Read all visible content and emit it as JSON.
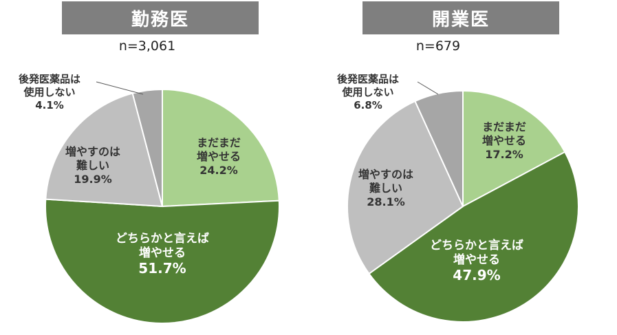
{
  "chart_data": [
    {
      "type": "pie",
      "title": "勤務医",
      "subtitle": "n=3,061",
      "colors": [
        "#a9d18e",
        "#538135",
        "#bfbfbf",
        "#a6a6a6"
      ],
      "slices": [
        {
          "label_lines": [
            "まだまだ",
            "増やせる"
          ],
          "value": 24.2,
          "value_text": "24.2%"
        },
        {
          "label_lines": [
            "どちらかと言えば",
            "増やせる"
          ],
          "value": 51.7,
          "value_text": "51.7%"
        },
        {
          "label_lines": [
            "増やすのは",
            "難しい"
          ],
          "value": 19.9,
          "value_text": "19.9%"
        },
        {
          "label_lines": [
            "後発医薬品は",
            "使用しない"
          ],
          "value": 4.1,
          "value_text": "4.1%"
        }
      ]
    },
    {
      "type": "pie",
      "title": "開業医",
      "subtitle": "n=679",
      "colors": [
        "#a9d18e",
        "#538135",
        "#bfbfbf",
        "#a6a6a6"
      ],
      "slices": [
        {
          "label_lines": [
            "まだまだ",
            "増やせる"
          ],
          "value": 17.2,
          "value_text": "17.2%"
        },
        {
          "label_lines": [
            "どちらかと言えば",
            "増やせる"
          ],
          "value": 47.9,
          "value_text": "47.9%"
        },
        {
          "label_lines": [
            "増やすのは",
            "難しい"
          ],
          "value": 28.1,
          "value_text": "28.1%"
        },
        {
          "label_lines": [
            "後発医薬品は",
            "使用しない"
          ],
          "value": 6.8,
          "value_text": "6.8%"
        }
      ]
    }
  ]
}
